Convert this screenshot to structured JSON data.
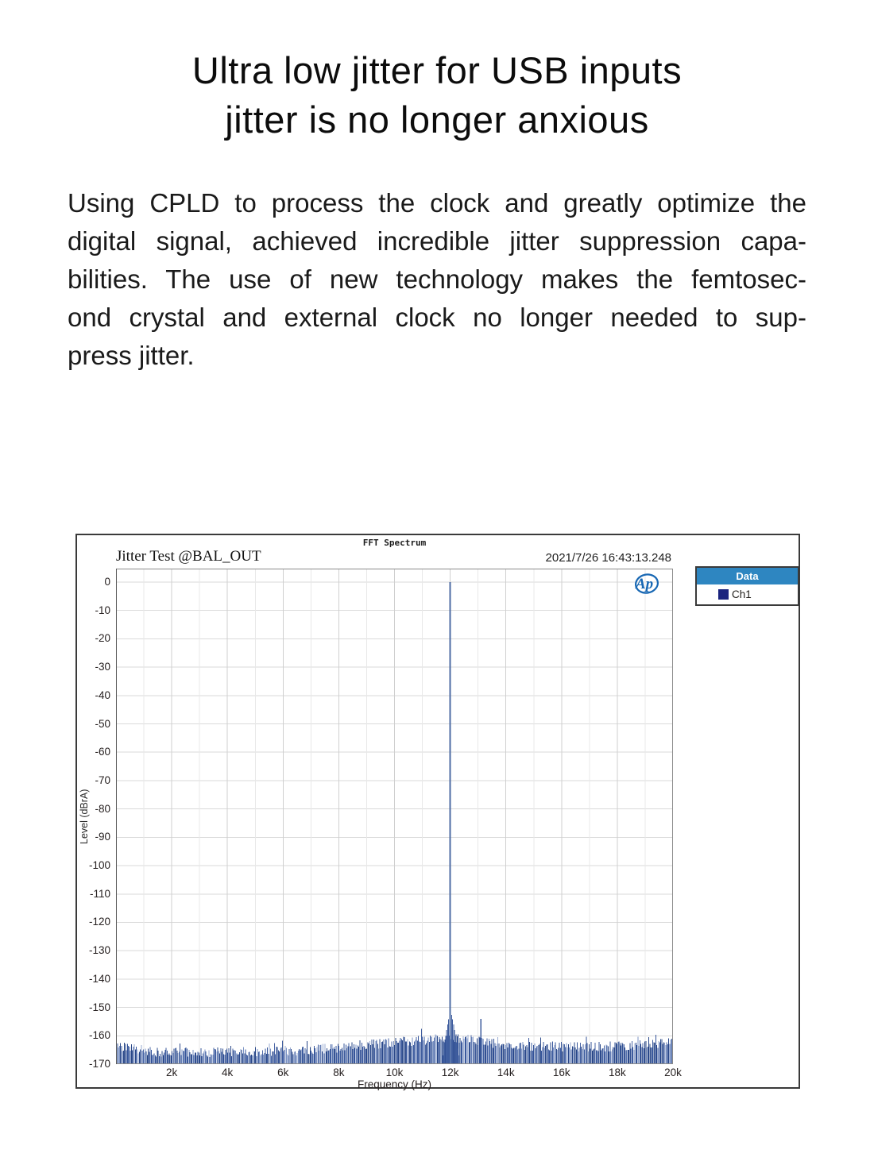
{
  "title": {
    "line1": "Ultra low jitter for USB inputs",
    "line2": "jitter is no longer anxious"
  },
  "paragraph": {
    "lines": [
      "Using CPLD to process the clock and greatly optimize the",
      "digital signal, achieved incredible jitter suppression capa-",
      "bilities. The use of new technology makes the femtosec-",
      "ond crystal and external clock no longer needed to sup-",
      "press jitter."
    ]
  },
  "chart": {
    "small_title": "FFT Spectrum",
    "header_left": "Jitter Test @BAL_OUT",
    "header_right": "2021/7/26 16:43:13.248",
    "legend_title": "Data",
    "ap_logo_text": "Ap",
    "colors": {
      "legend_header": "#2e86c1",
      "ch1_swatch": "#1a237e",
      "ap_logo": "#1767b3",
      "bar_palette": [
        "#2a4889",
        "#35549a",
        "#3d5c9f",
        "#4a66a6",
        "#7b93c4",
        "#9aabd1"
      ],
      "tone": "#4f6da4",
      "grid_minor": "#e8e8e8",
      "grid_major": "#cfcfcf",
      "grid_horizontal": "#dadada",
      "plot_frame": "#8c8c8c"
    }
  },
  "chart_data": {
    "type": "bar",
    "title": "FFT Spectrum",
    "xlabel": "Frequency (Hz)",
    "ylabel": "Level (dBrA)",
    "xlim": [
      0,
      20000
    ],
    "ylim": [
      -170,
      0
    ],
    "x_tick_labels": [
      {
        "hz": 2000,
        "label": "2k"
      },
      {
        "hz": 4000,
        "label": "4k"
      },
      {
        "hz": 6000,
        "label": "6k"
      },
      {
        "hz": 8000,
        "label": "8k"
      },
      {
        "hz": 10000,
        "label": "10k"
      },
      {
        "hz": 12000,
        "label": "12k"
      },
      {
        "hz": 14000,
        "label": "14k"
      },
      {
        "hz": 16000,
        "label": "16k"
      },
      {
        "hz": 18000,
        "label": "18k"
      },
      {
        "hz": 20000,
        "label": "20k"
      }
    ],
    "x_minor_step_hz": 1000,
    "x_major_step_hz": 2000,
    "y_ticks": [
      0,
      -10,
      -20,
      -30,
      -40,
      -50,
      -60,
      -70,
      -80,
      -90,
      -100,
      -110,
      -120,
      -130,
      -140,
      -150,
      -160,
      -170
    ],
    "series": [
      {
        "name": "Ch1",
        "color": "#35549a"
      }
    ],
    "main_tone": {
      "freq_hz": 12000,
      "level_dbra": 0
    },
    "spurs": [
      {
        "freq_hz": 10950,
        "level_dbra": -157.5
      },
      {
        "freq_hz": 13080,
        "level_dbra": -154
      }
    ],
    "tone_skirt": {
      "peak_dbra": -151.5,
      "step_db_per_bar": 1.15,
      "exponent": 1.25,
      "bars_each_side": 14
    },
    "noise_floor": {
      "profile_points_hz_dbra": [
        [
          0,
          -163.2
        ],
        [
          1200,
          -165.6
        ],
        [
          4000,
          -165.8
        ],
        [
          6500,
          -165.2
        ],
        [
          8000,
          -164.2
        ],
        [
          9800,
          -162.4
        ],
        [
          11000,
          -161.6
        ],
        [
          12000,
          -160.2
        ],
        [
          13000,
          -162.0
        ],
        [
          14500,
          -163.6
        ],
        [
          16500,
          -164.0
        ],
        [
          18500,
          -163.6
        ],
        [
          20000,
          -162.2
        ]
      ],
      "jitter_db": 3.2,
      "seed": 42
    },
    "grid": true,
    "legend_position": "top-right-outside"
  }
}
